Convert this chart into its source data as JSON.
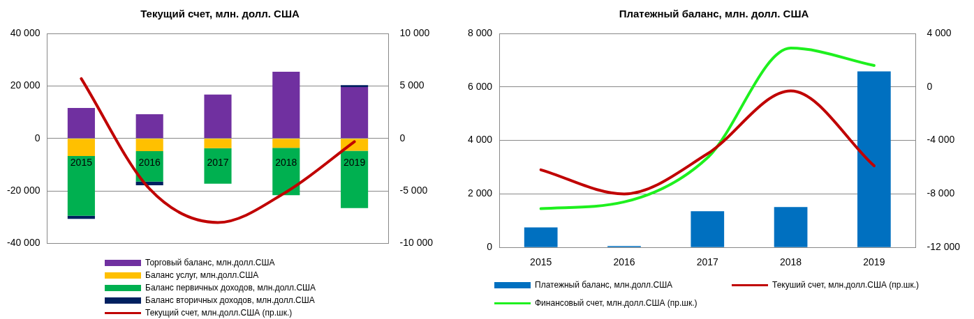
{
  "chart_data": [
    {
      "type": "bar",
      "title": "Текущий счет, млн. долл. США",
      "categories": [
        "2015",
        "2016",
        "2017",
        "2018",
        "2019"
      ],
      "stacked": true,
      "grid": "y",
      "legend": "bottom",
      "ylim": [
        -40000,
        40000
      ],
      "yticks": [
        {
          "value": -40000,
          "label": "-40 000"
        },
        {
          "value": -20000,
          "label": "-20 000"
        },
        0,
        {
          "value": 20000,
          "label": "20 000"
        },
        {
          "value": 40000,
          "label": "40 000"
        }
      ],
      "y2lim": [
        -10000,
        10000
      ],
      "y2ticks": [
        {
          "value": -10000,
          "label": "-10 000"
        },
        {
          "value": -5000,
          "label": "-5 000"
        },
        0,
        {
          "value": 5000,
          "label": "5 000"
        },
        {
          "value": 10000,
          "label": "10 000"
        }
      ],
      "series": [
        {
          "name": "Торговый баланс, млн.долл.США",
          "color": "#7030a0",
          "values": [
            11600,
            9200,
            16700,
            25400,
            19600
          ]
        },
        {
          "name": "Баланс услуг, млн.долл.США",
          "color": "#ffc000",
          "values": [
            -6700,
            -4800,
            -3700,
            -3600,
            -4700
          ]
        },
        {
          "name": "Баланс первичных доходов,  млн.долл.США",
          "color": "#00b050",
          "values": [
            -22700,
            -11600,
            -13500,
            -18000,
            -21800
          ]
        },
        {
          "name": "Баланс вторичных доходов,  млн.долл.США",
          "color": "#002060",
          "values": [
            -1200,
            -1400,
            null,
            0,
            700
          ]
        },
        {
          "name": "Текущий счет,  млн.долл.США (пр.шк.)",
          "color": "#c00000",
          "type": "line",
          "axis": "y2",
          "values": [
            5700,
            -4800,
            -8000,
            -5100,
            -300
          ]
        }
      ]
    },
    {
      "type": "bar",
      "title": "Платежный баланс, млн. долл. США",
      "categories": [
        "2015",
        "2016",
        "2017",
        "2018",
        "2019"
      ],
      "grid": "y",
      "legend": "bottom",
      "ylim": [
        0,
        8000
      ],
      "yticks": [
        0,
        {
          "value": 2000,
          "label": "2 000"
        },
        {
          "value": 4000,
          "label": "4 000"
        },
        {
          "value": 6000,
          "label": "6 000"
        },
        {
          "value": 8000,
          "label": "8 000"
        }
      ],
      "y2lim": [
        -12000,
        4000
      ],
      "y2ticks": [
        {
          "value": -12000,
          "label": "-12 000"
        },
        {
          "value": -8000,
          "label": "-8 000"
        },
        {
          "value": -4000,
          "label": "-4 000"
        },
        0,
        {
          "value": 4000,
          "label": "4 000"
        }
      ],
      "series": [
        {
          "name": "Платежный баланс, млн.долл.США",
          "color": "#0070c0",
          "values": [
            750,
            50,
            1350,
            1510,
            6580
          ]
        },
        {
          "name": "Текуший счет, млн.долл.США (пр.шк.)",
          "color": "#c00000",
          "type": "line",
          "axis": "y2",
          "values": [
            -6200,
            -8000,
            -5000,
            -300,
            -5900
          ]
        },
        {
          "name": "Финансовый счет, млн.долл.США (пр.шк.)",
          "color": "#1ef01e",
          "type": "line",
          "axis": "y2",
          "values": [
            -9100,
            -8600,
            -5300,
            2900,
            1600
          ]
        }
      ]
    }
  ]
}
